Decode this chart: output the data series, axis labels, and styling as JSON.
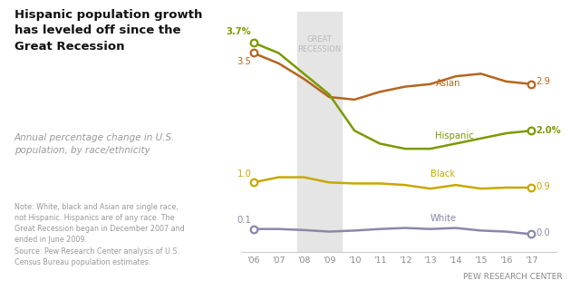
{
  "years": [
    2006,
    2007,
    2008,
    2009,
    2010,
    2011,
    2012,
    2013,
    2014,
    2015,
    2016,
    2017
  ],
  "asian": [
    3.5,
    3.3,
    3.0,
    2.65,
    2.6,
    2.75,
    2.85,
    2.9,
    3.05,
    3.1,
    2.95,
    2.9
  ],
  "hispanic": [
    3.7,
    3.5,
    3.1,
    2.7,
    2.0,
    1.75,
    1.65,
    1.65,
    1.75,
    1.85,
    1.95,
    2.0
  ],
  "black": [
    1.0,
    1.1,
    1.1,
    1.0,
    0.98,
    0.98,
    0.95,
    0.88,
    0.95,
    0.88,
    0.9,
    0.9
  ],
  "white": [
    0.1,
    0.1,
    0.08,
    0.05,
    0.07,
    0.1,
    0.12,
    0.1,
    0.12,
    0.07,
    0.05,
    0.0
  ],
  "asian_color": "#b5651d",
  "hispanic_color": "#7a9a01",
  "black_color": "#c8a800",
  "white_color": "#8888aa",
  "recession_start": 2007.75,
  "recession_end": 2009.5,
  "recession_color": "#e5e5e5",
  "title": "Hispanic population growth\nhas leveled off since the\nGreat Recession",
  "subtitle": "Annual percentage change in U.S.\npopulation, by race/ethnicity",
  "note": "Note: White, black and Asian are single race,\nnot Hispanic. Hispanics are of any race. The\nGreat Recession began in December 2007 and\nended in June 2009.\nSource: Pew Research Center analysis of U.S.\nCensus Bureau population estimates.",
  "pew": "PEW RESEARCH CENTER",
  "ylim": [
    -0.35,
    4.3
  ],
  "xlim": [
    2005.5,
    2018.0
  ]
}
